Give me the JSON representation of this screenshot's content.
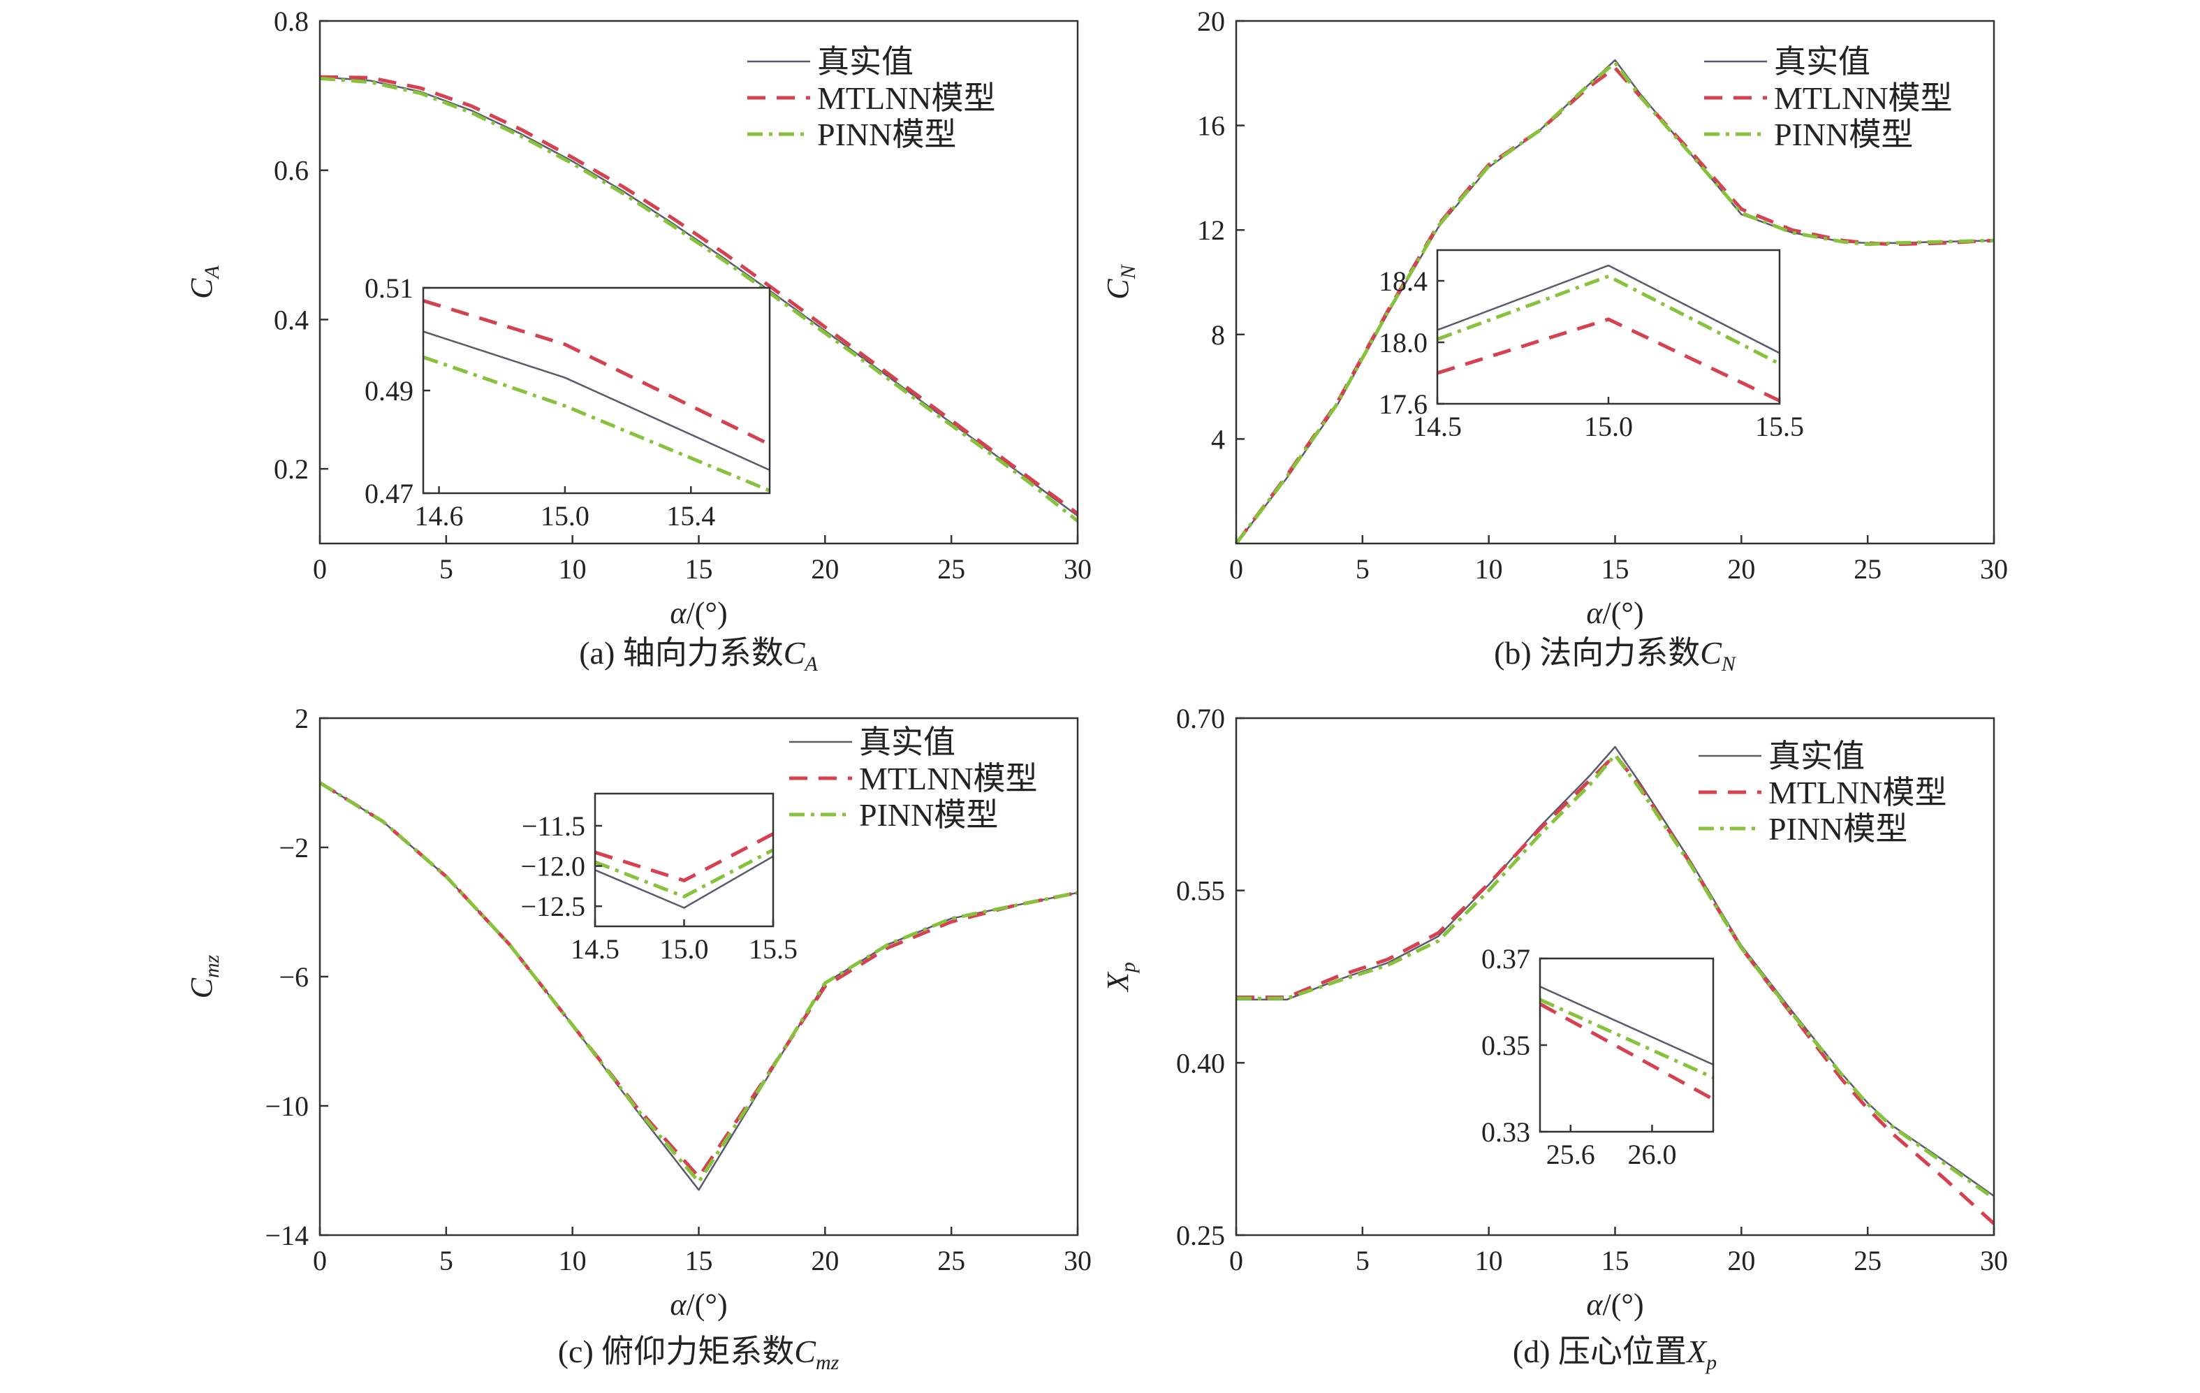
{
  "colors": {
    "true": "#5a5a6e",
    "mtlnn": "#d6404f",
    "pinn": "#86c23c",
    "axis": "#333333"
  },
  "legend": [
    "真实值",
    "MTLNN模型",
    "PINN模型"
  ],
  "chart_data": [
    {
      "type": "line",
      "caption": "(a) 轴向力系数C",
      "caption_sub": "A",
      "xlabel": "α/(°)",
      "ylabel": "C",
      "ylabel_sub": "A",
      "xlim": [
        0,
        30
      ],
      "ylim": [
        0.1,
        0.8
      ],
      "xticks": [
        0,
        5,
        10,
        15,
        20,
        25,
        30
      ],
      "yticks": [
        0.2,
        0.4,
        0.6,
        0.8
      ],
      "ytick_labels": [
        "0.2",
        "0.4",
        "0.6",
        "0.8"
      ],
      "series": [
        {
          "key": "true",
          "x": [
            0,
            2,
            4,
            6,
            8,
            10,
            12,
            14,
            16,
            18,
            20,
            22,
            24,
            26,
            28,
            30
          ],
          "y": [
            0.725,
            0.72,
            0.705,
            0.68,
            0.648,
            0.612,
            0.572,
            0.528,
            0.482,
            0.434,
            0.385,
            0.336,
            0.286,
            0.237,
            0.187,
            0.137
          ]
        },
        {
          "key": "mtlnn",
          "x": [
            0,
            2,
            4,
            6,
            8,
            10,
            12,
            14,
            16,
            18,
            20,
            22,
            24,
            26,
            28,
            30
          ],
          "y": [
            0.725,
            0.724,
            0.71,
            0.686,
            0.654,
            0.617,
            0.578,
            0.535,
            0.489,
            0.44,
            0.39,
            0.34,
            0.29,
            0.24,
            0.19,
            0.14
          ]
        },
        {
          "key": "pinn",
          "x": [
            0,
            2,
            4,
            6,
            8,
            10,
            12,
            14,
            16,
            18,
            20,
            22,
            24,
            26,
            28,
            30
          ],
          "y": [
            0.723,
            0.718,
            0.703,
            0.677,
            0.645,
            0.609,
            0.569,
            0.525,
            0.479,
            0.431,
            0.382,
            0.333,
            0.283,
            0.234,
            0.184,
            0.13
          ]
        }
      ],
      "inset": {
        "xlim": [
          14.55,
          15.65
        ],
        "ylim": [
          0.47,
          0.51
        ],
        "xticks": [
          14.6,
          15.0,
          15.4
        ],
        "xtick_labels": [
          "14.6",
          "15.0",
          "15.4"
        ],
        "yticks": [
          0.47,
          0.49,
          0.51
        ],
        "ytick_labels": [
          "0.47",
          "0.49",
          "0.51"
        ],
        "series": [
          {
            "key": "true",
            "x": [
              14.55,
              15.0,
              15.65
            ],
            "y": [
              0.5015,
              0.4925,
              0.4745
            ]
          },
          {
            "key": "mtlnn",
            "x": [
              14.55,
              15.0,
              15.65
            ],
            "y": [
              0.5075,
              0.499,
              0.4795
            ]
          },
          {
            "key": "pinn",
            "x": [
              14.55,
              15.0,
              15.65
            ],
            "y": [
              0.4965,
              0.487,
              0.4705
            ]
          }
        ]
      }
    },
    {
      "type": "line",
      "caption": "(b) 法向力系数C",
      "caption_sub": "N",
      "xlabel": "α/(°)",
      "ylabel": "C",
      "ylabel_sub": "N",
      "xlim": [
        0,
        30
      ],
      "ylim": [
        0,
        20
      ],
      "xticks": [
        0,
        5,
        10,
        15,
        20,
        25,
        30
      ],
      "yticks": [
        4,
        8,
        12,
        16,
        20
      ],
      "ytick_labels": [
        "4",
        "8",
        "12",
        "16",
        "20"
      ],
      "series": [
        {
          "key": "true",
          "x": [
            0,
            2,
            4,
            6,
            8,
            10,
            12,
            14,
            15,
            16,
            18,
            20,
            22,
            24,
            25,
            26,
            28,
            30
          ],
          "y": [
            0,
            2.5,
            5.3,
            8.8,
            12.1,
            14.4,
            15.8,
            17.6,
            18.5,
            17.2,
            14.9,
            12.6,
            11.9,
            11.55,
            11.5,
            11.5,
            11.55,
            11.6
          ]
        },
        {
          "key": "mtlnn",
          "x": [
            0,
            2,
            4,
            6,
            8,
            10,
            12,
            14,
            15,
            16,
            18,
            20,
            22,
            24,
            25,
            26,
            28,
            30
          ],
          "y": [
            0,
            2.6,
            5.4,
            8.9,
            12.2,
            14.5,
            15.8,
            17.5,
            18.2,
            17.1,
            15.0,
            12.8,
            12.0,
            11.6,
            11.5,
            11.45,
            11.5,
            11.6
          ]
        },
        {
          "key": "pinn",
          "x": [
            0,
            2,
            4,
            6,
            8,
            10,
            12,
            14,
            15,
            16,
            18,
            20,
            22,
            24,
            25,
            26,
            28,
            30
          ],
          "y": [
            0,
            2.55,
            5.35,
            8.85,
            12.15,
            14.45,
            15.8,
            17.6,
            18.4,
            17.1,
            14.9,
            12.65,
            11.9,
            11.55,
            11.45,
            11.5,
            11.55,
            11.6
          ]
        }
      ],
      "inset": {
        "xlim": [
          14.5,
          15.5
        ],
        "ylim": [
          17.6,
          18.6
        ],
        "xticks": [
          14.5,
          15.0,
          15.5
        ],
        "xtick_labels": [
          "14.5",
          "15.0",
          "15.5"
        ],
        "yticks": [
          17.6,
          18.0,
          18.4
        ],
        "ytick_labels": [
          "17.6",
          "18.0",
          "18.4"
        ],
        "series": [
          {
            "key": "true",
            "x": [
              14.5,
              15.0,
              15.5
            ],
            "y": [
              18.08,
              18.5,
              17.93
            ]
          },
          {
            "key": "mtlnn",
            "x": [
              14.5,
              15.0,
              15.5
            ],
            "y": [
              17.8,
              18.15,
              17.62
            ]
          },
          {
            "key": "pinn",
            "x": [
              14.5,
              15.0,
              15.5
            ],
            "y": [
              18.02,
              18.43,
              17.86
            ]
          }
        ]
      }
    },
    {
      "type": "line",
      "caption": "(c) 俯仰力矩系数C",
      "caption_sub": "mz",
      "xlabel": "α/(°)",
      "ylabel": "C",
      "ylabel_sub": "mz",
      "xlim": [
        0,
        30
      ],
      "ylim": [
        -14,
        2
      ],
      "xticks": [
        0,
        5,
        10,
        15,
        20,
        25,
        30
      ],
      "yticks": [
        -14,
        -10,
        -6,
        -2,
        2
      ],
      "ytick_labels": [
        "−14",
        "−10",
        "−6",
        "−2",
        "2"
      ],
      "series": [
        {
          "key": "true",
          "x": [
            0,
            2.5,
            5,
            7.5,
            10,
            12.5,
            15,
            17.5,
            20,
            22.5,
            25,
            27.5,
            30
          ],
          "y": [
            0,
            -1.2,
            -2.9,
            -5.0,
            -7.5,
            -10.1,
            -12.6,
            -9.4,
            -6.2,
            -5.0,
            -4.2,
            -3.8,
            -3.4
          ]
        },
        {
          "key": "mtlnn",
          "x": [
            0,
            2.5,
            5,
            7.5,
            10,
            12.5,
            15,
            17.5,
            20,
            22.5,
            25,
            27.5,
            30
          ],
          "y": [
            0,
            -1.2,
            -2.9,
            -5.0,
            -7.5,
            -10.0,
            -12.2,
            -9.3,
            -6.3,
            -5.1,
            -4.3,
            -3.8,
            -3.4
          ]
        },
        {
          "key": "pinn",
          "x": [
            0,
            2.5,
            5,
            7.5,
            10,
            12.5,
            15,
            17.5,
            20,
            22.5,
            25,
            27.5,
            30
          ],
          "y": [
            0,
            -1.2,
            -2.9,
            -5.0,
            -7.5,
            -10.05,
            -12.35,
            -9.35,
            -6.2,
            -5.0,
            -4.2,
            -3.8,
            -3.4
          ]
        }
      ],
      "inset": {
        "xlim": [
          14.5,
          15.5
        ],
        "ylim": [
          -12.75,
          -11.1
        ],
        "xticks": [
          14.5,
          15.0,
          15.5
        ],
        "xtick_labels": [
          "14.5",
          "15.0",
          "15.5"
        ],
        "yticks": [
          -12.5,
          -12.0,
          -11.5
        ],
        "ytick_labels": [
          "−12.5",
          "−12.0",
          "−11.5"
        ],
        "series": [
          {
            "key": "true",
            "x": [
              14.5,
              15.0,
              15.5
            ],
            "y": [
              -12.05,
              -12.52,
              -11.88
            ]
          },
          {
            "key": "mtlnn",
            "x": [
              14.5,
              15.0,
              15.5
            ],
            "y": [
              -11.83,
              -12.18,
              -11.6
            ]
          },
          {
            "key": "pinn",
            "x": [
              14.5,
              15.0,
              15.5
            ],
            "y": [
              -11.95,
              -12.38,
              -11.8
            ]
          }
        ]
      }
    },
    {
      "type": "line",
      "caption": "(d) 压心位置X",
      "caption_sub": "p",
      "xlabel": "α/(°)",
      "ylabel": "X",
      "ylabel_sub": "p",
      "xlim": [
        0,
        30
      ],
      "ylim": [
        0.25,
        0.7
      ],
      "xticks": [
        0,
        5,
        10,
        15,
        20,
        25,
        30
      ],
      "yticks": [
        0.25,
        0.4,
        0.55,
        0.7
      ],
      "ytick_labels": [
        "0.25",
        "0.40",
        "0.55",
        "0.70"
      ],
      "series": [
        {
          "key": "true",
          "x": [
            0,
            2,
            4,
            6,
            8,
            10,
            12,
            14,
            15,
            16,
            18,
            20,
            22,
            24,
            25,
            26,
            28,
            30
          ],
          "y": [
            0.455,
            0.455,
            0.472,
            0.487,
            0.51,
            0.555,
            0.605,
            0.65,
            0.675,
            0.643,
            0.575,
            0.502,
            0.445,
            0.39,
            0.365,
            0.345,
            0.315,
            0.284
          ]
        },
        {
          "key": "mtlnn",
          "x": [
            0,
            2,
            4,
            6,
            8,
            10,
            12,
            14,
            15,
            16,
            18,
            20,
            22,
            24,
            25,
            26,
            28,
            30
          ],
          "y": [
            0.457,
            0.457,
            0.475,
            0.49,
            0.513,
            0.556,
            0.603,
            0.646,
            0.668,
            0.64,
            0.573,
            0.5,
            0.442,
            0.385,
            0.36,
            0.338,
            0.3,
            0.26
          ]
        },
        {
          "key": "pinn",
          "x": [
            0,
            2,
            4,
            6,
            8,
            10,
            12,
            14,
            15,
            16,
            18,
            20,
            22,
            24,
            25,
            26,
            28,
            30
          ],
          "y": [
            0.456,
            0.456,
            0.471,
            0.485,
            0.506,
            0.55,
            0.598,
            0.642,
            0.668,
            0.638,
            0.572,
            0.5,
            0.443,
            0.389,
            0.364,
            0.344,
            0.313,
            0.282
          ]
        }
      ],
      "inset": {
        "xlim": [
          25.45,
          26.3
        ],
        "ylim": [
          0.33,
          0.37
        ],
        "xticks": [
          25.6,
          26.0
        ],
        "xtick_labels": [
          "25.6",
          "26.0"
        ],
        "yticks": [
          0.33,
          0.35,
          0.37
        ],
        "ytick_labels": [
          "0.33",
          "0.35",
          "0.37"
        ],
        "series": [
          {
            "key": "true",
            "x": [
              25.45,
              26.3
            ],
            "y": [
              0.3635,
              0.3455
            ]
          },
          {
            "key": "mtlnn",
            "x": [
              25.45,
              26.3
            ],
            "y": [
              0.3595,
              0.3375
            ]
          },
          {
            "key": "pinn",
            "x": [
              25.45,
              26.3
            ],
            "y": [
              0.3605,
              0.3425
            ]
          }
        ]
      }
    }
  ]
}
